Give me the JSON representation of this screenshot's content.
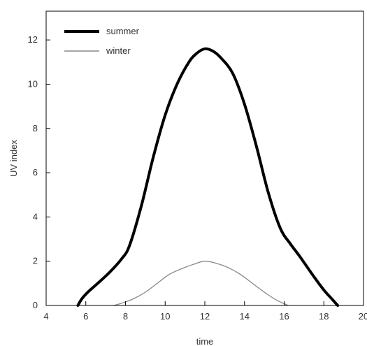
{
  "chart_data": {
    "type": "line",
    "title": "",
    "xlabel": "time",
    "ylabel": "UV index",
    "xlim": [
      4,
      20
    ],
    "ylim": [
      0,
      13.3
    ],
    "xticks": [
      4,
      6,
      8,
      10,
      12,
      14,
      16,
      18,
      20
    ],
    "yticks": [
      0,
      2,
      4,
      6,
      8,
      10,
      12
    ],
    "xtick_labels": [
      "4",
      "6",
      "8",
      "10",
      "12",
      "14",
      "16",
      "18",
      "20"
    ],
    "ytick_labels": [
      "0",
      "2",
      "4",
      "6",
      "8",
      "10",
      "12"
    ],
    "grid": false,
    "legend": "top-left",
    "series": [
      {
        "name": "summer",
        "color": "#000000",
        "x": [
          5.6,
          5.8,
          6.1,
          6.6,
          7.2,
          7.8,
          8.2,
          8.8,
          9.4,
          10.0,
          10.6,
          11.2,
          11.6,
          12.0,
          12.4,
          12.8,
          13.4,
          14.0,
          14.6,
          15.2,
          15.8,
          16.3,
          16.8,
          17.5,
          18.0,
          18.4,
          18.7
        ],
        "y": [
          0,
          0.3,
          0.6,
          1.0,
          1.5,
          2.1,
          2.7,
          4.5,
          6.7,
          8.6,
          10.0,
          11.0,
          11.4,
          11.6,
          11.5,
          11.2,
          10.5,
          9.1,
          7.2,
          5.1,
          3.5,
          2.8,
          2.2,
          1.3,
          0.7,
          0.3,
          0
        ],
        "legend_line": "thick"
      },
      {
        "name": "winter",
        "color": "#888888",
        "x": [
          7.4,
          7.8,
          8.4,
          9.0,
          9.6,
          10.2,
          10.8,
          11.4,
          12.0,
          12.6,
          13.2,
          13.8,
          14.4,
          15.0,
          15.6,
          16.2
        ],
        "y": [
          0,
          0.1,
          0.3,
          0.6,
          1.0,
          1.4,
          1.65,
          1.85,
          2.0,
          1.9,
          1.7,
          1.4,
          1.0,
          0.6,
          0.25,
          0
        ],
        "legend_line": "thin"
      }
    ]
  }
}
